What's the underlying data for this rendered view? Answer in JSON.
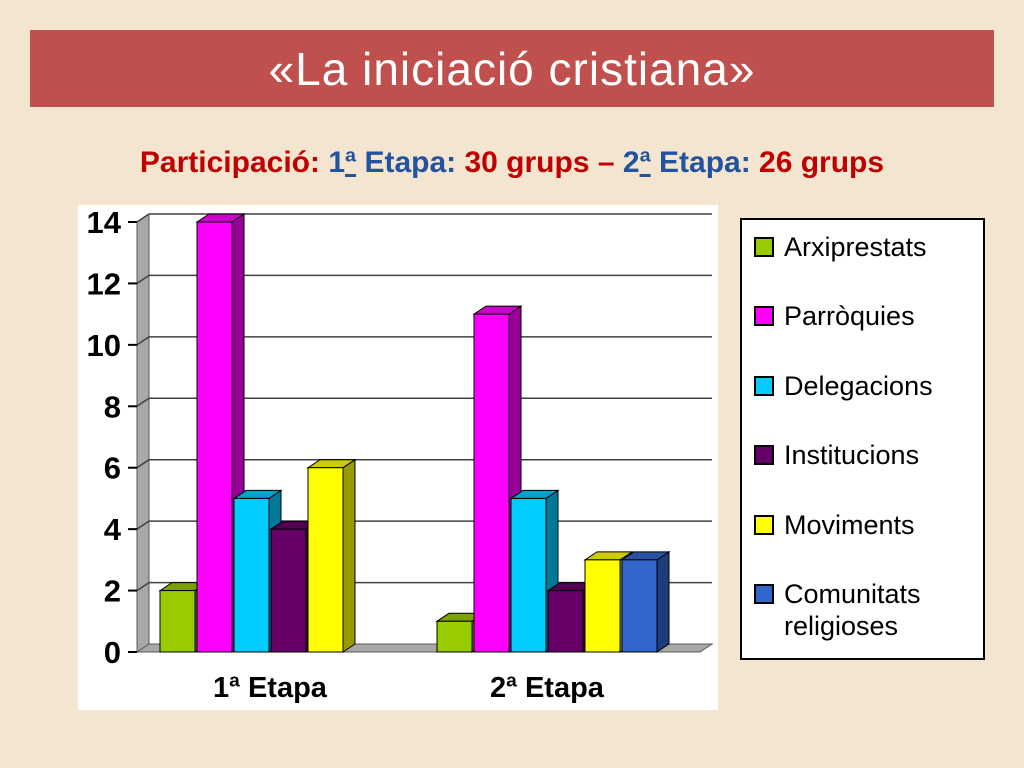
{
  "colors": {
    "background": "#F4E5D0",
    "banner": "#C0504D",
    "subtitle_red": "#C00000",
    "subtitle_blue": "#2352A0",
    "chart_wall": "#A8A8A8"
  },
  "slide": {
    "title": "«La iniciació cristiana»"
  },
  "subtitle": {
    "segments": [
      {
        "text": "Participació: ",
        "color": "#C00000"
      },
      {
        "text": "1ª Etapa: ",
        "color": "#2352A0"
      },
      {
        "text": "30 grups – ",
        "color": "#C00000"
      },
      {
        "text": "2ª Etapa: ",
        "color": "#2352A0"
      },
      {
        "text": "26 grups",
        "color": "#C00000"
      }
    ]
  },
  "chart_data": {
    "type": "bar",
    "subtype": "3d-column",
    "title": "",
    "categories": [
      "1ª Etapa",
      "2ª Etapa"
    ],
    "series": [
      {
        "name": "Arxiprestats",
        "color": "#99CC00",
        "values": [
          2,
          1
        ]
      },
      {
        "name": "Parròquies",
        "color": "#FF00FF",
        "values": [
          14,
          11
        ]
      },
      {
        "name": "Delegacions",
        "color": "#00CCFF",
        "values": [
          5,
          5
        ]
      },
      {
        "name": "Institucions",
        "color": "#660066",
        "values": [
          4,
          2
        ]
      },
      {
        "name": "Moviments",
        "color": "#FFFF00",
        "values": [
          6,
          3
        ]
      },
      {
        "name": "Comunitats religioses",
        "color": "#3366CC",
        "values": [
          0,
          3
        ]
      }
    ],
    "ylim": [
      0,
      14
    ],
    "ytick_step": 2,
    "yticks": [
      0,
      2,
      4,
      6,
      8,
      10,
      12,
      14
    ],
    "grid": true,
    "legend_position": "right"
  }
}
